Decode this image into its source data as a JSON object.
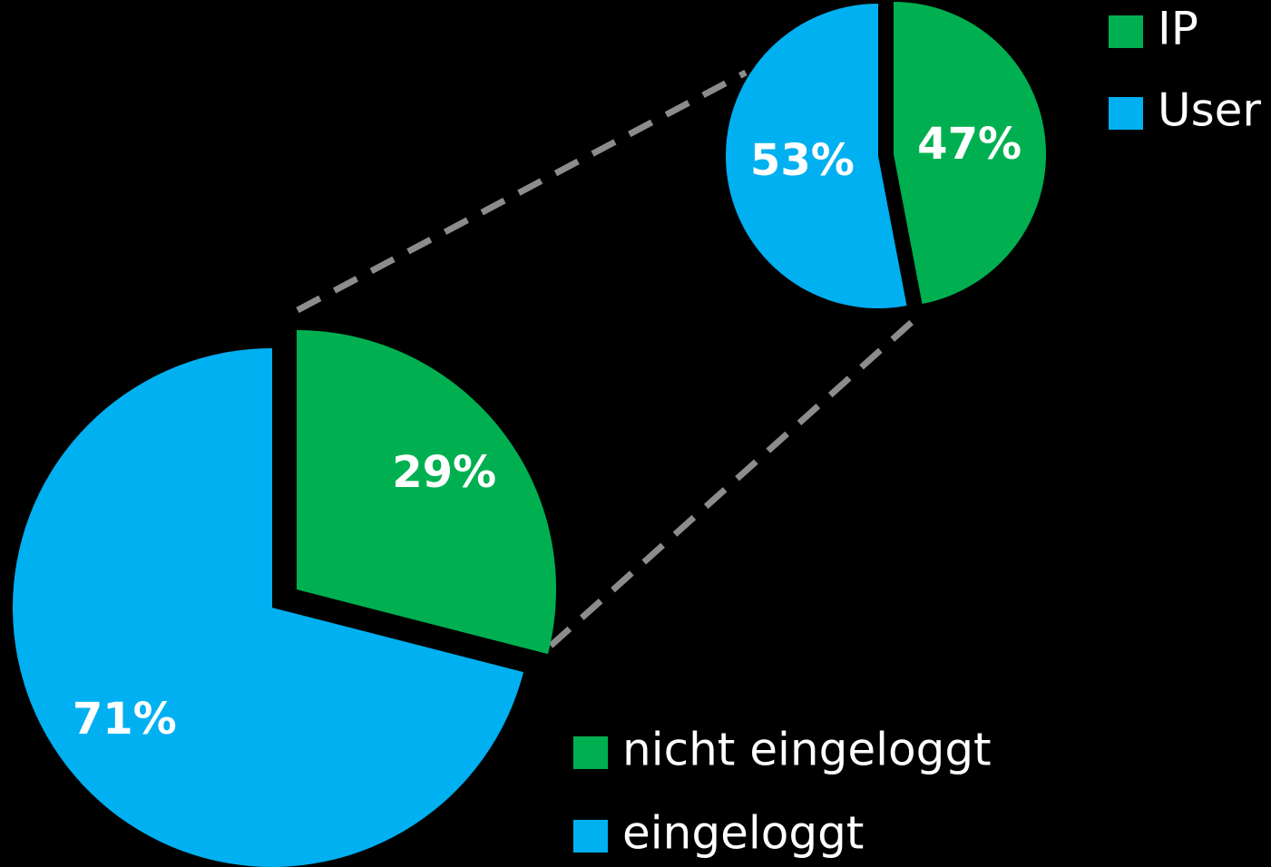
{
  "chart_data": [
    {
      "type": "pie",
      "categories": [
        "nicht eingeloggt",
        "eingeloggt"
      ],
      "values": [
        29,
        71
      ],
      "value_labels": [
        "29%",
        "71%"
      ],
      "colors": [
        "#00b050",
        "#00b0f0"
      ]
    },
    {
      "type": "pie",
      "categories": [
        "IP",
        "User"
      ],
      "values": [
        47,
        53
      ],
      "value_labels": [
        "47%",
        "53%"
      ],
      "colors": [
        "#00b050",
        "#00b0f0"
      ]
    }
  ]
}
